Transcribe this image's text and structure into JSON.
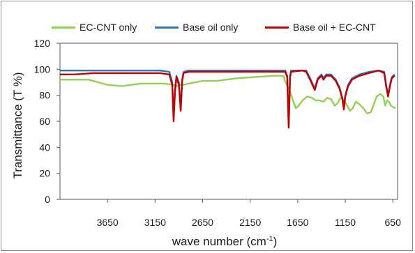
{
  "chart_data": {
    "type": "line",
    "title": "",
    "xlabel": "wave number (cm",
    "xlabel_sup": "-1",
    "xlabel_close": ")",
    "ylabel": "Transmittance (T %)",
    "xlim": [
      4150,
      600
    ],
    "ylim": [
      0,
      120
    ],
    "x_ticks": [
      3650,
      3150,
      2650,
      2150,
      1650,
      1150,
      650
    ],
    "y_ticks": [
      0,
      20,
      40,
      60,
      80,
      100,
      120
    ],
    "grid": false,
    "legend_position": "top",
    "series": [
      {
        "name": "EC-CNT only",
        "color": "#92d050",
        "points": [
          [
            4150,
            92
          ],
          [
            4000,
            92
          ],
          [
            3850,
            92
          ],
          [
            3750,
            90
          ],
          [
            3650,
            88
          ],
          [
            3500,
            87
          ],
          [
            3400,
            88
          ],
          [
            3300,
            89
          ],
          [
            3150,
            89
          ],
          [
            3050,
            89
          ],
          [
            2960,
            88
          ],
          [
            2920,
            87
          ],
          [
            2880,
            88
          ],
          [
            2850,
            88
          ],
          [
            2800,
            89
          ],
          [
            2650,
            91
          ],
          [
            2500,
            91
          ],
          [
            2300,
            93
          ],
          [
            2100,
            94
          ],
          [
            1900,
            95
          ],
          [
            1800,
            95
          ],
          [
            1780,
            90
          ],
          [
            1740,
            85
          ],
          [
            1700,
            76
          ],
          [
            1670,
            70
          ],
          [
            1640,
            72
          ],
          [
            1600,
            76
          ],
          [
            1550,
            79
          ],
          [
            1500,
            78
          ],
          [
            1460,
            76
          ],
          [
            1420,
            76
          ],
          [
            1380,
            75
          ],
          [
            1340,
            78
          ],
          [
            1300,
            77
          ],
          [
            1260,
            72
          ],
          [
            1230,
            74
          ],
          [
            1200,
            78
          ],
          [
            1160,
            76
          ],
          [
            1130,
            72
          ],
          [
            1100,
            68
          ],
          [
            1070,
            70
          ],
          [
            1040,
            75
          ],
          [
            1000,
            73
          ],
          [
            960,
            70
          ],
          [
            920,
            66
          ],
          [
            880,
            67
          ],
          [
            850,
            73
          ],
          [
            820,
            79
          ],
          [
            780,
            81
          ],
          [
            750,
            79
          ],
          [
            730,
            72
          ],
          [
            710,
            76
          ],
          [
            690,
            75
          ],
          [
            670,
            72
          ],
          [
            650,
            71
          ],
          [
            620,
            70
          ]
        ]
      },
      {
        "name": "Base oil only",
        "color": "#2e75b6",
        "points": [
          [
            4150,
            99
          ],
          [
            4000,
            99
          ],
          [
            3800,
            99
          ],
          [
            3650,
            99
          ],
          [
            3500,
            99
          ],
          [
            3300,
            99
          ],
          [
            3100,
            99
          ],
          [
            3000,
            98
          ],
          [
            2970,
            90
          ],
          [
            2955,
            66
          ],
          [
            2940,
            85
          ],
          [
            2925,
            95
          ],
          [
            2900,
            90
          ],
          [
            2880,
            70
          ],
          [
            2865,
            92
          ],
          [
            2850,
            98
          ],
          [
            2800,
            99
          ],
          [
            2500,
            99
          ],
          [
            2200,
            99
          ],
          [
            1900,
            99
          ],
          [
            1780,
            99
          ],
          [
            1760,
            95
          ],
          [
            1745,
            57
          ],
          [
            1730,
            95
          ],
          [
            1720,
            99
          ],
          [
            1600,
            99
          ],
          [
            1560,
            99
          ],
          [
            1520,
            93
          ],
          [
            1470,
            85
          ],
          [
            1440,
            93
          ],
          [
            1400,
            96
          ],
          [
            1380,
            93
          ],
          [
            1350,
            96
          ],
          [
            1300,
            96
          ],
          [
            1250,
            92
          ],
          [
            1210,
            86
          ],
          [
            1180,
            78
          ],
          [
            1165,
            71
          ],
          [
            1150,
            80
          ],
          [
            1120,
            88
          ],
          [
            1080,
            93
          ],
          [
            1000,
            96
          ],
          [
            900,
            98
          ],
          [
            800,
            99
          ],
          [
            740,
            98
          ],
          [
            720,
            88
          ],
          [
            700,
            80
          ],
          [
            680,
            88
          ],
          [
            660,
            94
          ],
          [
            630,
            96
          ]
        ]
      },
      {
        "name": "Base oil + EC-CNT",
        "color": "#c00000",
        "points": [
          [
            4150,
            96
          ],
          [
            4000,
            96
          ],
          [
            3800,
            97
          ],
          [
            3650,
            97
          ],
          [
            3500,
            97
          ],
          [
            3300,
            97
          ],
          [
            3100,
            97
          ],
          [
            3000,
            96
          ],
          [
            2970,
            88
          ],
          [
            2955,
            60
          ],
          [
            2940,
            83
          ],
          [
            2925,
            94
          ],
          [
            2900,
            88
          ],
          [
            2880,
            68
          ],
          [
            2865,
            91
          ],
          [
            2850,
            97
          ],
          [
            2800,
            98
          ],
          [
            2500,
            98
          ],
          [
            2200,
            98
          ],
          [
            1900,
            98
          ],
          [
            1780,
            98
          ],
          [
            1760,
            94
          ],
          [
            1745,
            55
          ],
          [
            1730,
            94
          ],
          [
            1720,
            98
          ],
          [
            1600,
            99
          ],
          [
            1560,
            98
          ],
          [
            1520,
            92
          ],
          [
            1470,
            84
          ],
          [
            1440,
            92
          ],
          [
            1400,
            95
          ],
          [
            1380,
            92
          ],
          [
            1350,
            95
          ],
          [
            1300,
            95
          ],
          [
            1250,
            91
          ],
          [
            1210,
            85
          ],
          [
            1180,
            77
          ],
          [
            1165,
            69
          ],
          [
            1150,
            79
          ],
          [
            1120,
            87
          ],
          [
            1080,
            92
          ],
          [
            1000,
            95
          ],
          [
            900,
            97
          ],
          [
            800,
            99
          ],
          [
            740,
            97
          ],
          [
            720,
            87
          ],
          [
            700,
            79
          ],
          [
            680,
            87
          ],
          [
            660,
            93
          ],
          [
            630,
            95
          ]
        ]
      }
    ]
  }
}
